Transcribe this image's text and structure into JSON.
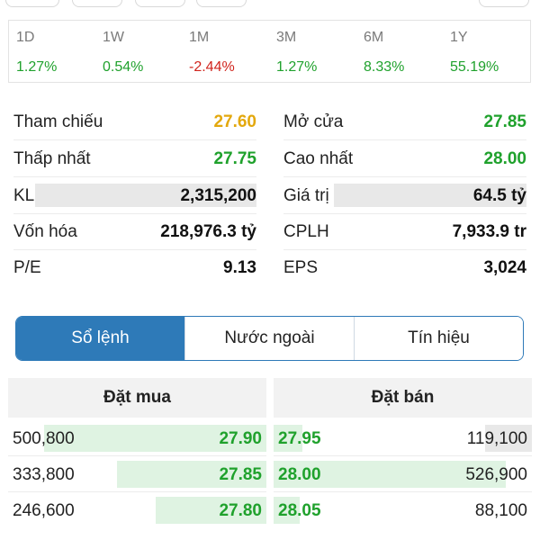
{
  "colors": {
    "up": "#1fa12c",
    "down": "#d0241d",
    "ref": "#e3a80d",
    "accent": "#2e7ab8"
  },
  "performance": [
    {
      "label": "1D",
      "value": "1.27%",
      "trend": "up"
    },
    {
      "label": "1W",
      "value": "0.54%",
      "trend": "up"
    },
    {
      "label": "1M",
      "value": "-2.44%",
      "trend": "down"
    },
    {
      "label": "3M",
      "value": "1.27%",
      "trend": "up"
    },
    {
      "label": "6M",
      "value": "8.33%",
      "trend": "up"
    },
    {
      "label": "1Y",
      "value": "55.19%",
      "trend": "up"
    }
  ],
  "stats": {
    "reference": {
      "label": "Tham chiếu",
      "value": "27.60"
    },
    "open": {
      "label": "Mở cửa",
      "value": "27.85"
    },
    "low": {
      "label": "Thấp nhất",
      "value": "27.75"
    },
    "high": {
      "label": "Cao nhất",
      "value": "28.00"
    },
    "volume": {
      "label": "KL",
      "value": "2,315,200"
    },
    "trade_value": {
      "label": "Giá trị",
      "value": "64.5 tỷ"
    },
    "market_cap": {
      "label": "Vốn hóa",
      "value": "218,976.3 tỷ"
    },
    "shares": {
      "label": "CPLH",
      "value": "7,933.9 tr"
    },
    "pe": {
      "label": "P/E",
      "value": "9.13"
    },
    "eps": {
      "label": "EPS",
      "value": "3,024"
    }
  },
  "tabs": [
    {
      "label": "Sổ lệnh",
      "active": true
    },
    {
      "label": "Nước ngoài",
      "active": false
    },
    {
      "label": "Tín hiệu",
      "active": false
    }
  ],
  "order_book": {
    "buy_header": "Đặt mua",
    "sell_header": "Đặt bán",
    "buy": [
      {
        "volume": "500,800",
        "price": "27.90",
        "depth": 0.86
      },
      {
        "volume": "333,800",
        "price": "27.85",
        "depth": 0.58
      },
      {
        "volume": "246,600",
        "price": "27.80",
        "depth": 0.43
      }
    ],
    "sell": [
      {
        "price": "27.95",
        "volume": "119,100",
        "depth": 0.18
      },
      {
        "price": "28.00",
        "volume": "526,900",
        "depth": 0.9
      },
      {
        "price": "28.05",
        "volume": "88,100",
        "depth": 0.1
      }
    ]
  }
}
